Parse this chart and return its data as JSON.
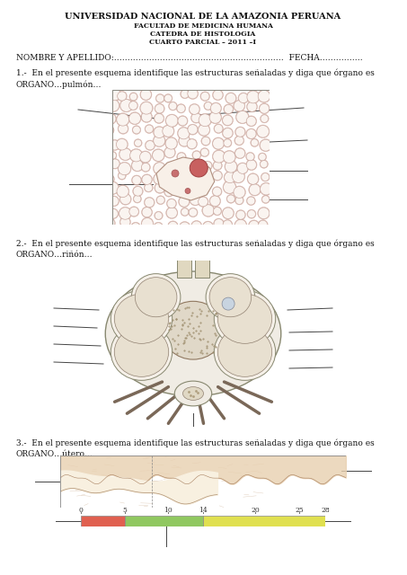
{
  "bg_color": "#ffffff",
  "title1": "UNIVERSIDAD NACIONAL DE LA AMAZONIA PERUANA",
  "title2": "FACULTAD DE MEDICINA HUMANA",
  "title3": "CATEDRA DE HISTOLOGIA",
  "title4": "CUARTO PARCIAL – 2011 –I",
  "nombre_line": "NOMBRE Y APELLIDO:………………………………………………………  FECHA…………….",
  "q1_text": "1.-  En el presente esquema identifique las estructuras señaladas y diga que órgano es\nORGANO…pulmón…",
  "q2_text": "2.-  En el presente esquema identifique las estructuras señaladas y diga que órgano es\nORGANO…riñón…",
  "q3_text": "3.-  En el presente esquema identifique las estructuras señaladas y diga que órgano es\nORGANO…útero…",
  "bar_ticks": [
    0,
    5,
    10,
    14,
    20,
    25,
    28
  ]
}
